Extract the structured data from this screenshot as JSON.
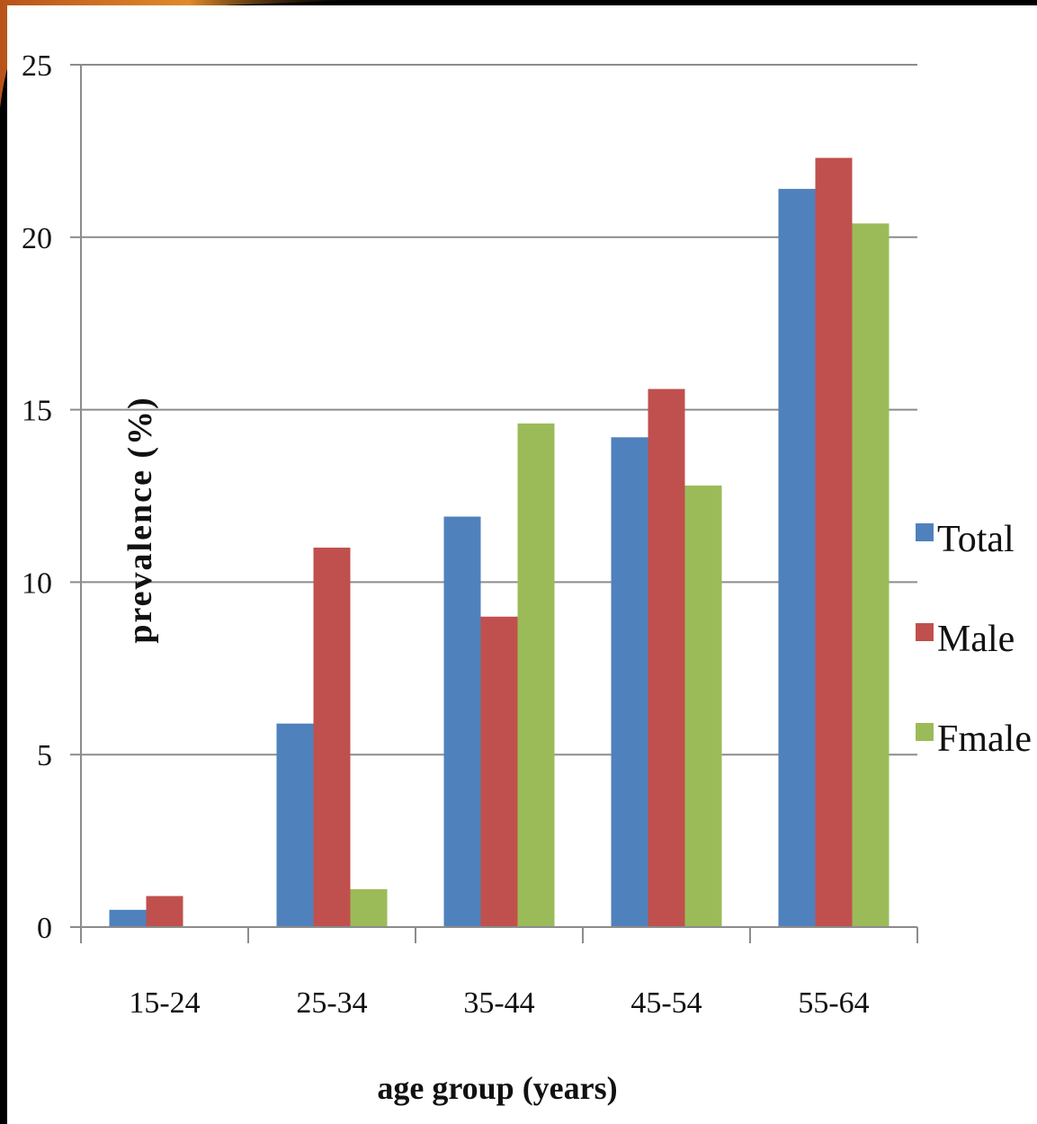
{
  "chart_data": {
    "type": "bar",
    "categories": [
      "15-24",
      "25-34",
      "35-44",
      "45-54",
      "55-64"
    ],
    "series": [
      {
        "name": "Total",
        "color": "#4f81bd",
        "values": [
          0.5,
          5.9,
          11.9,
          14.2,
          21.4
        ]
      },
      {
        "name": "Male",
        "color": "#c0504d",
        "values": [
          0.9,
          11.0,
          9.0,
          15.6,
          22.3
        ]
      },
      {
        "name": "Fmale",
        "color": "#9bbb59",
        "values": [
          0,
          1.1,
          14.6,
          12.8,
          20.4
        ]
      }
    ],
    "xlabel": "age group (years)",
    "ylabel": "prevalence (%)",
    "ylim": [
      0,
      25
    ],
    "yticks": [
      "0",
      "5",
      "10",
      "15",
      "20",
      "25"
    ],
    "grid": true,
    "legend_position": "right"
  }
}
